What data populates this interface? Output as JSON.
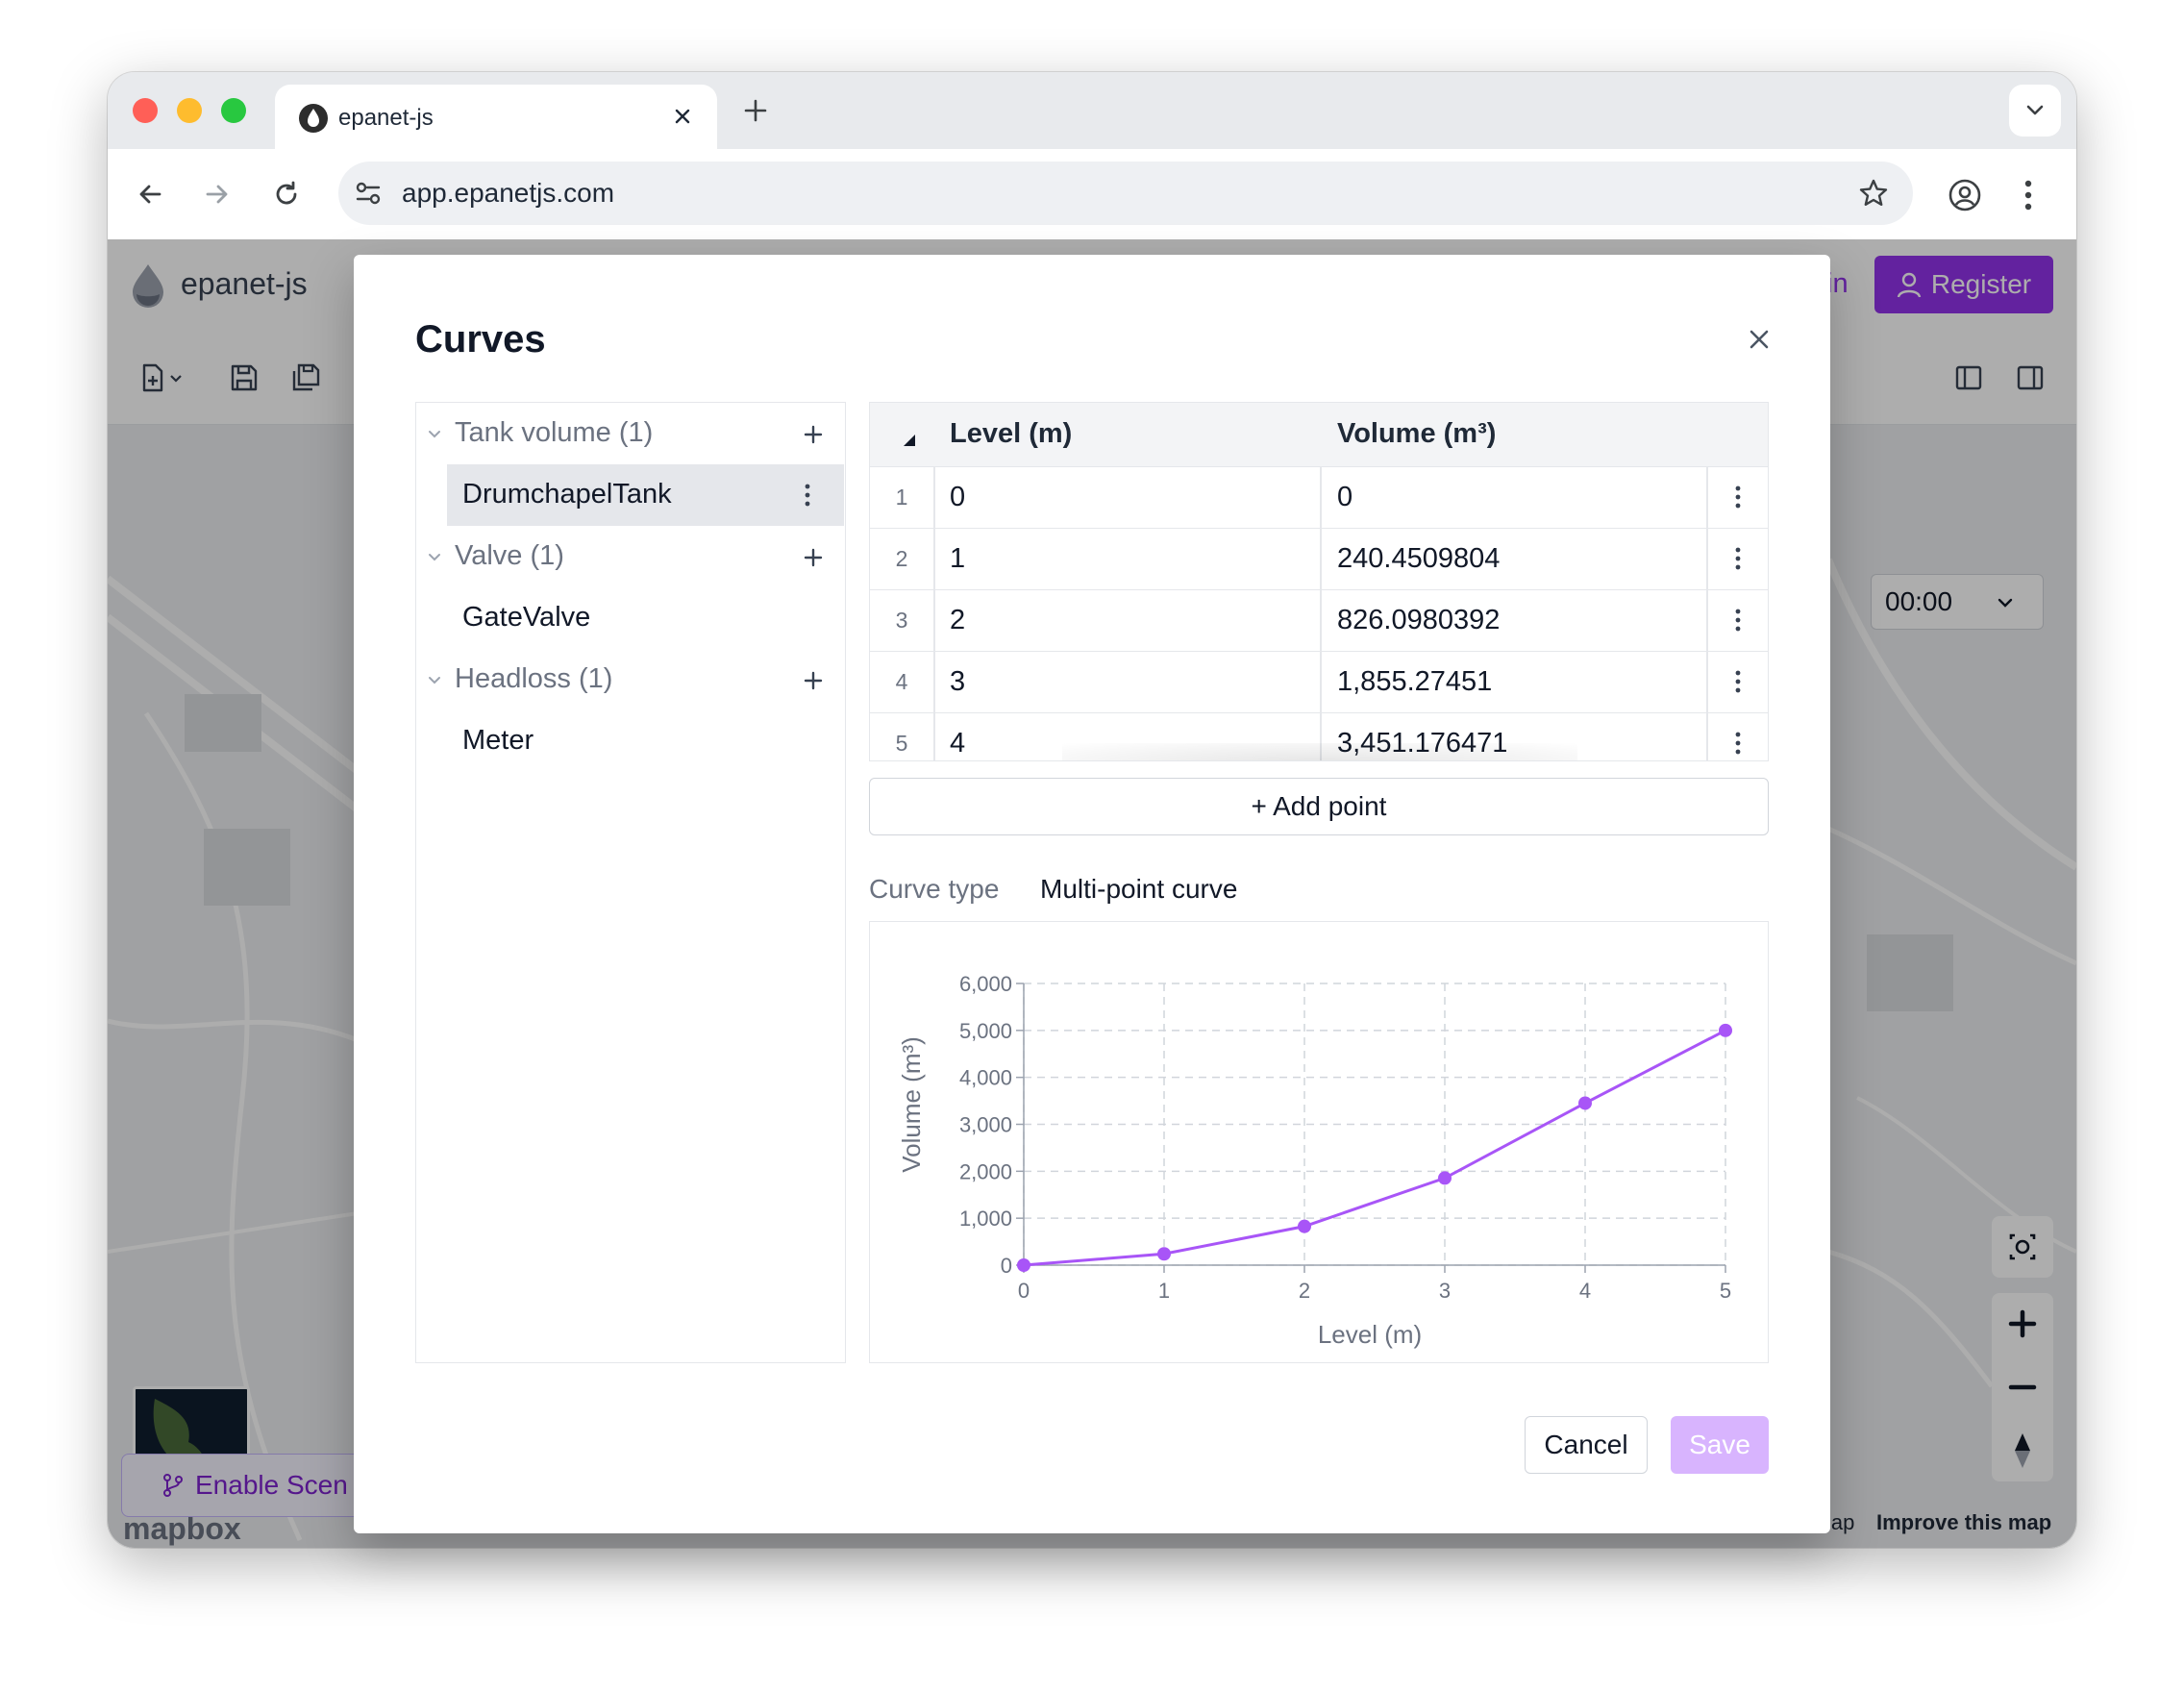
{
  "browser": {
    "tab_title": "epanet-js",
    "url": "app.epanetjs.com"
  },
  "app": {
    "logo_text": "epanet-js",
    "login_partial": "in",
    "register_label": "Register",
    "time_value": "00:00",
    "enable_scenarios_label": "Enable Scen",
    "map_attribution_partial": "lap",
    "improve_map_label": "Improve this map",
    "mapbox_label": "mapbox"
  },
  "dialog": {
    "title": "Curves",
    "tree": [
      {
        "group": "Tank volume (1)",
        "items": [
          "DrumchapelTank"
        ]
      },
      {
        "group": "Valve (1)",
        "items": [
          "GateValve"
        ]
      },
      {
        "group": "Headloss (1)",
        "items": [
          "Meter"
        ]
      }
    ],
    "table": {
      "columns": [
        "Level (m)",
        "Volume (m³)"
      ],
      "rows": [
        {
          "n": "1",
          "level": "0",
          "volume": "0"
        },
        {
          "n": "2",
          "level": "1",
          "volume": "240.4509804"
        },
        {
          "n": "3",
          "level": "2",
          "volume": "826.0980392"
        },
        {
          "n": "4",
          "level": "3",
          "volume": "1,855.27451"
        },
        {
          "n": "5",
          "level": "4",
          "volume": "3,451.176471"
        }
      ]
    },
    "add_point_label": "+ Add point",
    "curve_type_label": "Curve type",
    "curve_type_value": "Multi-point curve",
    "cancel_label": "Cancel",
    "save_label": "Save"
  },
  "colors": {
    "accent": "#9333ea",
    "series": "#a855f7",
    "save_disabled": "#d8b4fe"
  },
  "chart_data": {
    "type": "line",
    "title": "",
    "xlabel": "Level (m)",
    "ylabel": "Volume (m³)",
    "x": [
      0,
      1,
      2,
      3,
      4,
      5
    ],
    "series": [
      {
        "values": [
          0,
          240.4509804,
          826.0980392,
          1855.27451,
          3451.176471,
          5000
        ]
      }
    ],
    "xlim": [
      0,
      5
    ],
    "ylim": [
      0,
      6000
    ],
    "xticks": [
      "0",
      "1",
      "2",
      "3",
      "4",
      "5"
    ],
    "yticks": [
      "0",
      "1,000",
      "2,000",
      "3,000",
      "4,000",
      "5,000",
      "6,000"
    ],
    "grid": true
  }
}
